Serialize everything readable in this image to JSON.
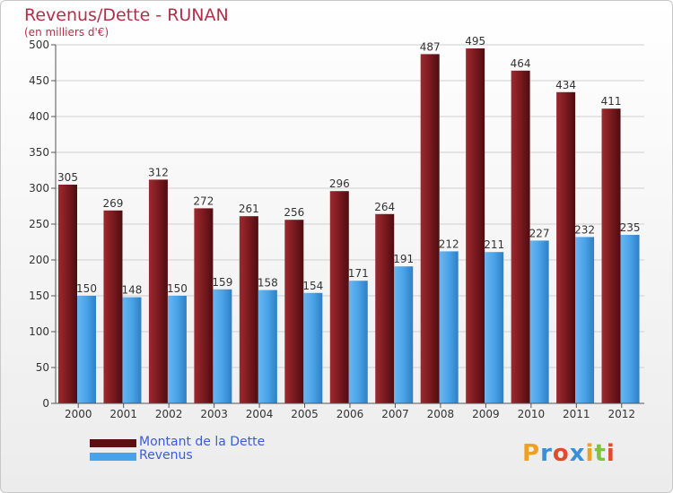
{
  "title": "Revenus/Dette - RUNAN",
  "subtitle": "(en milliers d'€)",
  "logo_text": "Proxiti",
  "colors": {
    "dette": "#7a1a1f",
    "dette_dark": "#5a0f12",
    "revenus": "#4aa3e8",
    "revenus_dark": "#2f7fc4",
    "title": "#b0304a",
    "legend_text": "#3b5bdb"
  },
  "chart_data": {
    "type": "bar",
    "title": "Revenus/Dette - RUNAN",
    "subtitle": "(en milliers d'€)",
    "categories": [
      "2000",
      "2001",
      "2002",
      "2003",
      "2004",
      "2005",
      "2006",
      "2007",
      "2008",
      "2009",
      "2010",
      "2011",
      "2012"
    ],
    "series": [
      {
        "name": "Montant de la Dette",
        "values": [
          305,
          269,
          312,
          272,
          261,
          256,
          296,
          264,
          487,
          495,
          464,
          434,
          411
        ]
      },
      {
        "name": "Revenus",
        "values": [
          150,
          148,
          150,
          159,
          158,
          154,
          171,
          191,
          212,
          211,
          227,
          232,
          235
        ]
      }
    ],
    "ylim": [
      0,
      500
    ],
    "yticks": [
      0,
      50,
      100,
      150,
      200,
      250,
      300,
      350,
      400,
      450,
      500
    ],
    "grid": true,
    "legend": "bottom-left"
  }
}
